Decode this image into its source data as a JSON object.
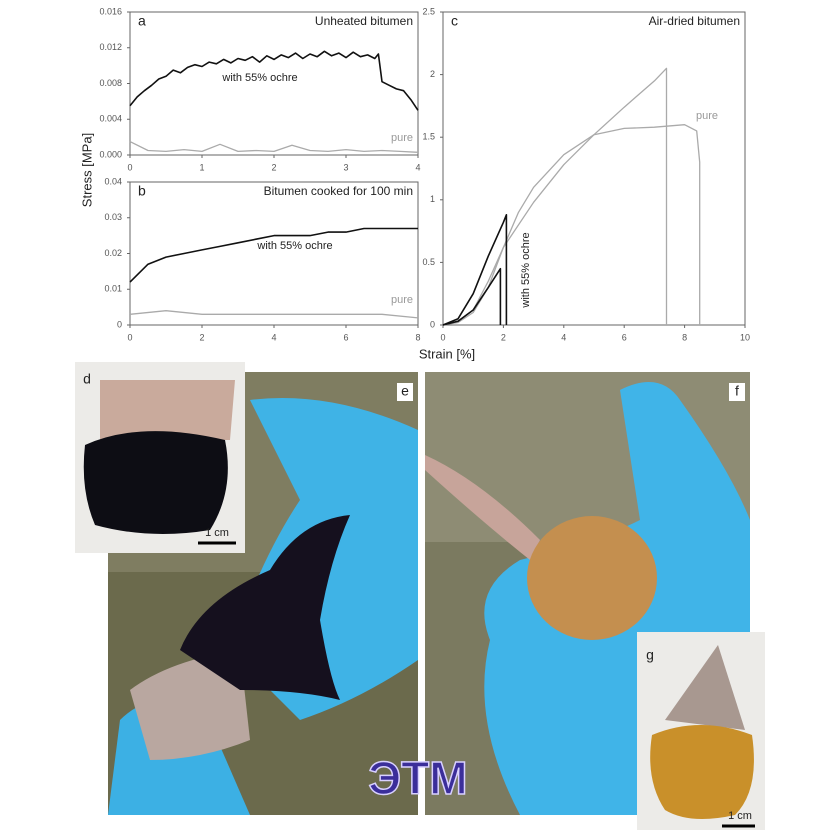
{
  "shared_labels": {
    "y": "Stress [MPa]",
    "x": "Strain [%]"
  },
  "chart_data": [
    {
      "type": "line",
      "panel": "a",
      "title": "Unheated bitumen",
      "xlim": [
        0,
        4
      ],
      "xticks": [
        0,
        1,
        2,
        3,
        4
      ],
      "ylim": [
        0,
        0.016
      ],
      "yticks": [
        {
          "value": 0,
          "label": "0.000"
        },
        0.004,
        0.008,
        0.012,
        0.016
      ],
      "series": [
        {
          "name": "with 55% ochre",
          "color": "#111111",
          "x": [
            0,
            0.1,
            0.2,
            0.3,
            0.4,
            0.5,
            0.6,
            0.7,
            0.8,
            0.9,
            1.0,
            1.1,
            1.2,
            1.3,
            1.4,
            1.5,
            1.6,
            1.7,
            1.8,
            1.9,
            2.0,
            2.1,
            2.2,
            2.3,
            2.4,
            2.5,
            2.6,
            2.7,
            2.8,
            2.9,
            3.0,
            3.1,
            3.2,
            3.3,
            3.4,
            3.45,
            3.5,
            3.6,
            3.7,
            3.8,
            3.9,
            4.0
          ],
          "values": [
            0.0055,
            0.0065,
            0.0072,
            0.0078,
            0.0085,
            0.0088,
            0.0095,
            0.0092,
            0.0098,
            0.0101,
            0.0099,
            0.0104,
            0.0102,
            0.0107,
            0.0103,
            0.0108,
            0.0106,
            0.011,
            0.0104,
            0.0111,
            0.0107,
            0.0112,
            0.0109,
            0.0114,
            0.0108,
            0.0113,
            0.011,
            0.0116,
            0.0111,
            0.0114,
            0.0109,
            0.0115,
            0.011,
            0.0112,
            0.0108,
            0.0113,
            0.0082,
            0.0078,
            0.0074,
            0.0072,
            0.0062,
            0.005
          ]
        },
        {
          "name": "pure",
          "color": "#aaaaaa",
          "x": [
            0,
            0.25,
            0.5,
            0.75,
            1,
            1.25,
            1.5,
            1.75,
            2,
            2.25,
            2.5,
            2.75,
            3,
            3.25,
            3.5,
            3.75,
            4
          ],
          "values": [
            0.0015,
            0.0005,
            0.0004,
            0.0006,
            0.0004,
            0.0012,
            0.0004,
            0.0005,
            0.0004,
            0.0011,
            0.0005,
            0.0004,
            0.0006,
            0.0004,
            0.0005,
            0.0004,
            0.0003
          ]
        }
      ]
    },
    {
      "type": "line",
      "panel": "b",
      "title": "Bitumen cooked for 100 min",
      "xlim": [
        0,
        8
      ],
      "xticks": [
        0,
        2,
        4,
        6,
        8
      ],
      "ylim": [
        0,
        0.04
      ],
      "yticks": [
        0,
        0.01,
        0.02,
        0.03,
        0.04
      ],
      "series": [
        {
          "name": "with 55% ochre",
          "color": "#111111",
          "x": [
            0,
            0.5,
            1,
            1.5,
            2,
            2.5,
            3,
            3.5,
            4,
            4.5,
            5,
            5.5,
            6,
            6.5,
            7,
            7.5,
            8
          ],
          "values": [
            0.012,
            0.017,
            0.019,
            0.02,
            0.021,
            0.022,
            0.023,
            0.024,
            0.025,
            0.025,
            0.025,
            0.026,
            0.026,
            0.027,
            0.027,
            0.027,
            0.027
          ]
        },
        {
          "name": "pure",
          "color": "#aaaaaa",
          "x": [
            0,
            1,
            2,
            3,
            4,
            5,
            6,
            7,
            8
          ],
          "values": [
            0.003,
            0.004,
            0.003,
            0.003,
            0.003,
            0.003,
            0.003,
            0.003,
            0.002
          ]
        }
      ]
    },
    {
      "type": "line",
      "panel": "c",
      "title": "Air-dried bitumen",
      "xlim": [
        0,
        10
      ],
      "xticks": [
        0,
        2,
        4,
        6,
        8,
        10
      ],
      "ylim": [
        0,
        2.5
      ],
      "yticks": [
        0,
        0.5,
        1,
        1.5,
        2,
        2.5
      ],
      "series": [
        {
          "name": "pure",
          "color": "#aaaaaa",
          "x": [
            0,
            0.5,
            1,
            1.5,
            2,
            3,
            4,
            5,
            6,
            7,
            7.4,
            7.4
          ],
          "values": [
            0,
            0.03,
            0.12,
            0.35,
            0.62,
            0.98,
            1.28,
            1.52,
            1.74,
            1.95,
            2.05,
            0
          ]
        },
        {
          "color": "#aaaaaa",
          "x": [
            0,
            0.5,
            1,
            1.5,
            2,
            2.5,
            3,
            4,
            5,
            6,
            7,
            8,
            8.4,
            8.5,
            8.5
          ],
          "values": [
            0,
            0.02,
            0.1,
            0.3,
            0.62,
            0.9,
            1.1,
            1.36,
            1.52,
            1.57,
            1.58,
            1.6,
            1.55,
            1.3,
            0
          ]
        },
        {
          "name": "with 55% ochre",
          "color": "#111111",
          "x": [
            0,
            0.5,
            1,
            1.5,
            2,
            2.1,
            2.1
          ],
          "values": [
            0,
            0.05,
            0.25,
            0.55,
            0.82,
            0.88,
            0
          ]
        },
        {
          "color": "#111111",
          "x": [
            0,
            0.5,
            1,
            1.5,
            1.9,
            1.9
          ],
          "values": [
            0,
            0.03,
            0.12,
            0.3,
            0.45,
            0
          ]
        }
      ]
    }
  ],
  "photos": [
    {
      "label": "d",
      "scale": "1 cm"
    },
    {
      "label": "e"
    },
    {
      "label": "f"
    },
    {
      "label": "g",
      "scale": "1 cm"
    }
  ],
  "watermark": "ЭТМ"
}
